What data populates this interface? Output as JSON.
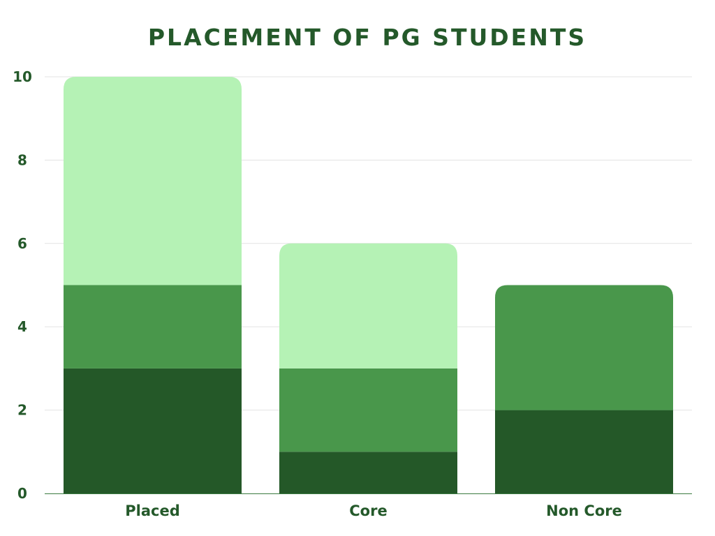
{
  "chart_data": {
    "type": "bar",
    "stacked": true,
    "title": "PLACEMENT OF PG STUDENTS",
    "xlabel": "",
    "ylabel": "",
    "categories": [
      "Placed",
      "Core",
      "Non Core"
    ],
    "series": [
      {
        "values": [
          3,
          1,
          2
        ],
        "color": "#245828"
      },
      {
        "values": [
          2,
          2,
          3
        ],
        "color": "#49974b"
      },
      {
        "values": [
          5,
          3,
          0
        ],
        "color": "#b5f2b5"
      }
    ],
    "yticks": [
      "0",
      "2",
      "4",
      "6",
      "8",
      "10"
    ],
    "ylim": [
      0,
      10
    ],
    "grid": true,
    "legend": "none"
  }
}
